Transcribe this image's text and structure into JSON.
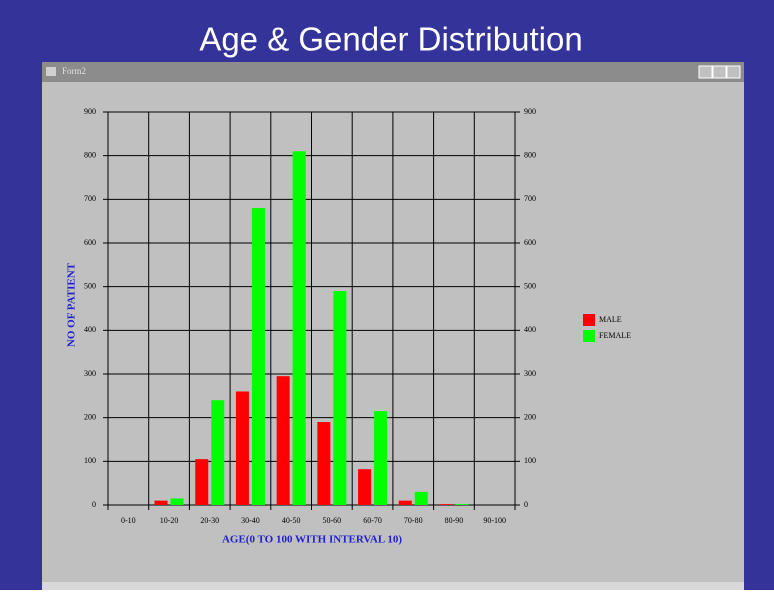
{
  "window_title": "Form2",
  "chart_data": {
    "type": "bar",
    "title": "Age & Gender Distribution",
    "categories": [
      "0-10",
      "10-20",
      "20-30",
      "30-40",
      "40-50",
      "50-60",
      "60-70",
      "70-80",
      "80-90",
      "90-100"
    ],
    "series": [
      {
        "name": "MALE",
        "color": "#ff0000",
        "values": [
          0,
          10,
          105,
          260,
          295,
          190,
          82,
          10,
          2,
          0
        ]
      },
      {
        "name": "FEMALE",
        "color": "#00ff00",
        "values": [
          0,
          15,
          240,
          680,
          810,
          490,
          215,
          30,
          2,
          0
        ]
      }
    ],
    "x_label": "AGE(0 TO 100 WITH INTERVAL 10)",
    "y_label": "NO OF PATIENT",
    "ylim": [
      0,
      900
    ],
    "yticks": [
      0,
      100,
      200,
      300,
      400,
      500,
      600,
      700,
      800,
      900
    ],
    "y2lim": [
      0,
      900
    ],
    "y2ticks": [
      0,
      100,
      200,
      300,
      400,
      500,
      600,
      700,
      800,
      900
    ],
    "grid": true,
    "legend": "right"
  }
}
